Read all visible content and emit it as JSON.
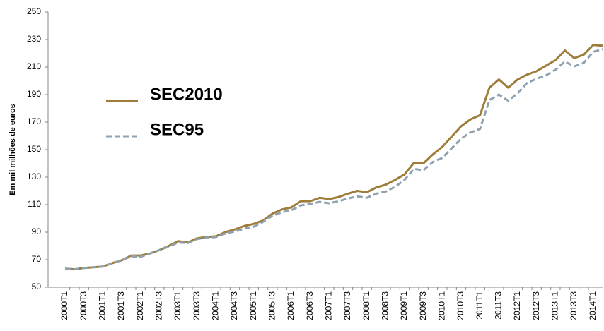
{
  "chart_data": {
    "type": "line",
    "y_label": "Em mil milhões de euros",
    "categories": [
      "2000T1",
      null,
      "2000T3",
      null,
      "2001T1",
      null,
      "2001T3",
      null,
      "2002T1",
      null,
      "2002T3",
      null,
      "2003T1",
      null,
      "2003T3",
      null,
      "2004T1",
      null,
      "2004T3",
      null,
      "2005T1",
      null,
      "2005T3",
      null,
      "2006T1",
      null,
      "2006T3",
      null,
      "2007T1",
      null,
      "2007T3",
      null,
      "2008T1",
      null,
      "2008T3",
      null,
      "2009T1",
      null,
      "2009T3",
      null,
      "2010T1",
      null,
      "2010T3",
      null,
      "2011T1",
      null,
      "2011T3",
      null,
      "2012T1",
      null,
      "2012T3",
      null,
      "2013T1",
      null,
      "2013T3",
      null,
      "2014T1",
      null
    ],
    "series": [
      {
        "name": "SEC2010",
        "color": "#9e7c3a",
        "dash": false,
        "values": [
          63.5,
          63,
          64,
          64.5,
          65,
          67.5,
          69.5,
          73,
          73,
          74.5,
          77,
          80,
          83.5,
          82.5,
          85.5,
          86.5,
          87,
          90,
          92,
          94.5,
          96,
          98.5,
          103.5,
          106.5,
          108,
          112.5,
          112.5,
          115,
          114,
          115.5,
          118,
          120,
          119,
          122.5,
          124.5,
          128,
          132,
          140.5,
          140,
          146.5,
          152,
          159.5,
          167,
          172,
          175,
          195,
          201,
          195,
          201,
          204.5,
          207,
          211,
          215,
          222,
          216.5,
          219,
          226,
          225.5
        ]
      },
      {
        "name": "SEC95",
        "color": "#8fa2b0",
        "dash": true,
        "values": [
          63.5,
          63,
          64,
          64.5,
          65,
          67.5,
          69.5,
          72.5,
          72,
          74.5,
          77,
          79.5,
          82.5,
          82,
          85,
          86,
          86.5,
          89,
          90.5,
          92.5,
          94,
          97.5,
          102,
          104.5,
          106,
          109.5,
          110.5,
          112,
          111,
          112.5,
          114.5,
          116,
          115,
          118,
          119.5,
          123,
          128,
          136,
          135,
          141,
          144,
          151,
          158,
          162.5,
          165,
          186,
          190,
          185.5,
          191,
          198.5,
          201.5,
          204,
          208,
          214,
          210.5,
          213,
          221,
          223
        ]
      }
    ],
    "ylim": [
      50,
      250
    ],
    "yticks": [
      50,
      70,
      90,
      110,
      130,
      150,
      170,
      190,
      210,
      230,
      250
    ],
    "grid": false,
    "legend": "upper left"
  }
}
